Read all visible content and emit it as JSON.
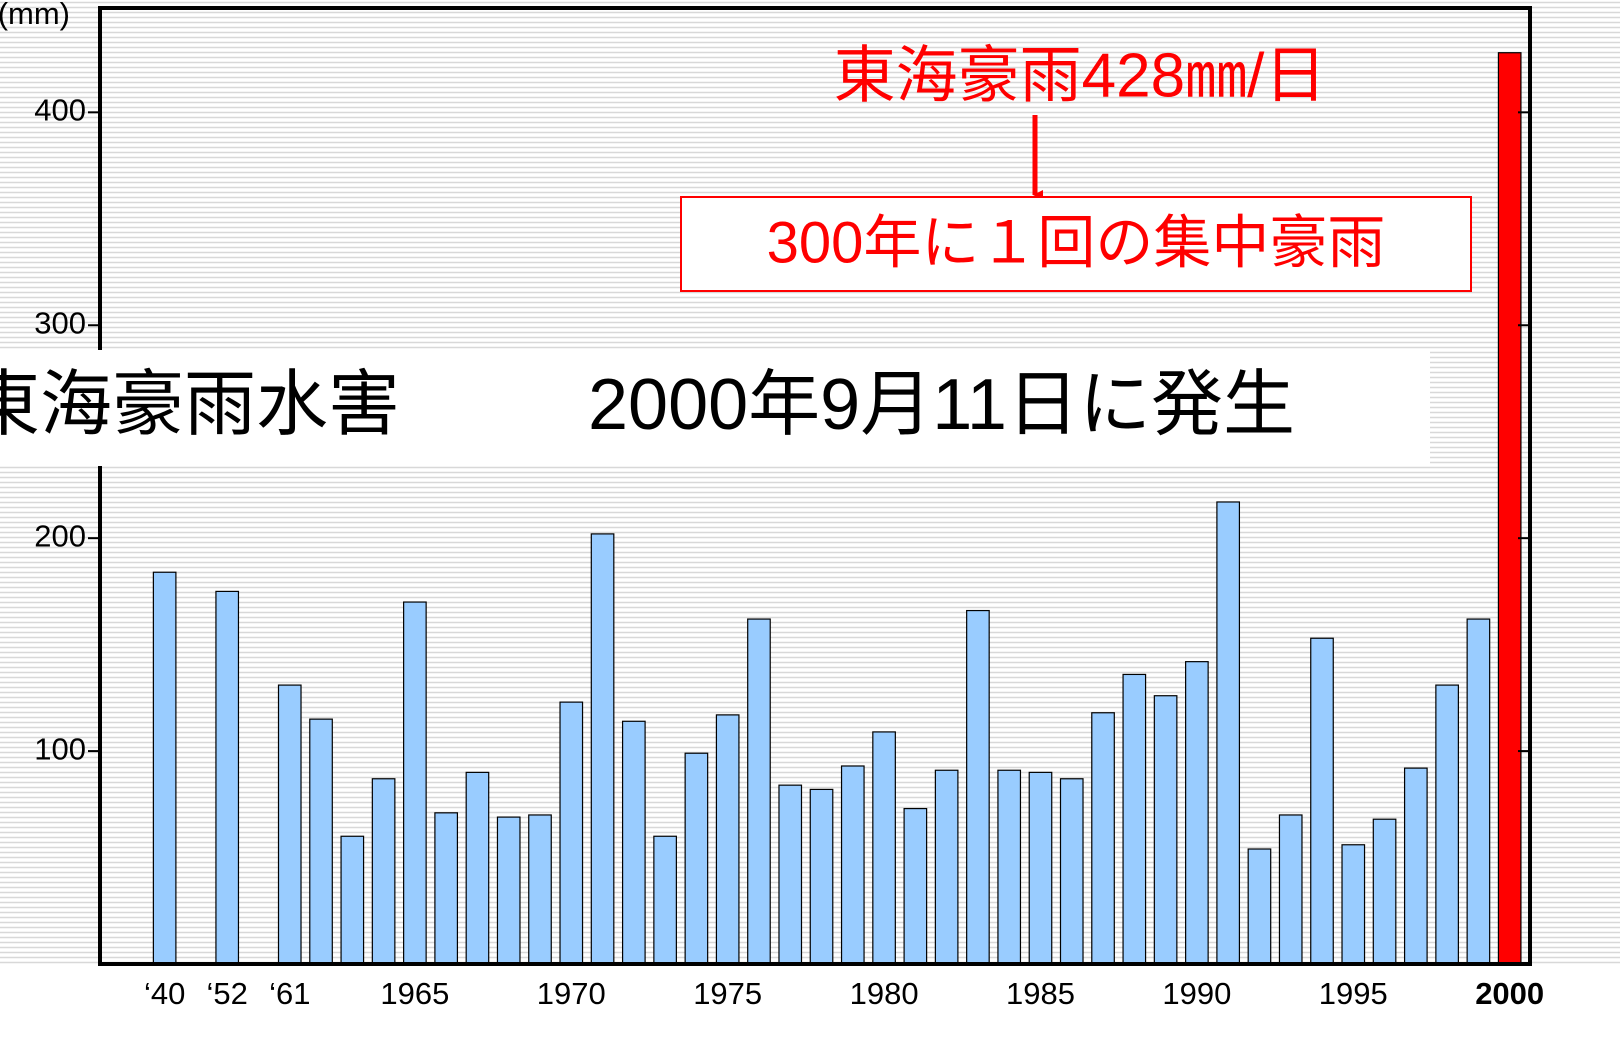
{
  "chart_data": {
    "type": "bar",
    "y_label": "(mm)",
    "banner": [
      "東海豪雨水害",
      "2000年9月11日に発生"
    ],
    "annotations": [
      "東海豪雨428㎜/日",
      "300年に１回の集中豪雨"
    ],
    "categories": [
      "‘40",
      null,
      "‘52",
      null,
      "‘61",
      null,
      null,
      null,
      "1965",
      null,
      null,
      null,
      null,
      "1970",
      null,
      null,
      null,
      null,
      "1975",
      null,
      null,
      null,
      null,
      "1980",
      null,
      null,
      null,
      null,
      "1985",
      null,
      null,
      null,
      null,
      "1990",
      null,
      null,
      null,
      null,
      "1995",
      null,
      null,
      null,
      null,
      "2000"
    ],
    "values": [
      184,
      null,
      175,
      null,
      131,
      115,
      60,
      87,
      170,
      71,
      90,
      69,
      70,
      123,
      202,
      114,
      60,
      99,
      117,
      162,
      84,
      82,
      93,
      109,
      73,
      91,
      166,
      91,
      90,
      87,
      118,
      136,
      126,
      142,
      217,
      54,
      70,
      153,
      56,
      68,
      92,
      131,
      162,
      428
    ],
    "color": "#99ccff",
    "highlight_color": "#ff0000",
    "highlight": [
      43
    ],
    "ylim": [
      0,
      449
    ],
    "yticks": [
      100,
      200,
      300,
      400
    ]
  }
}
